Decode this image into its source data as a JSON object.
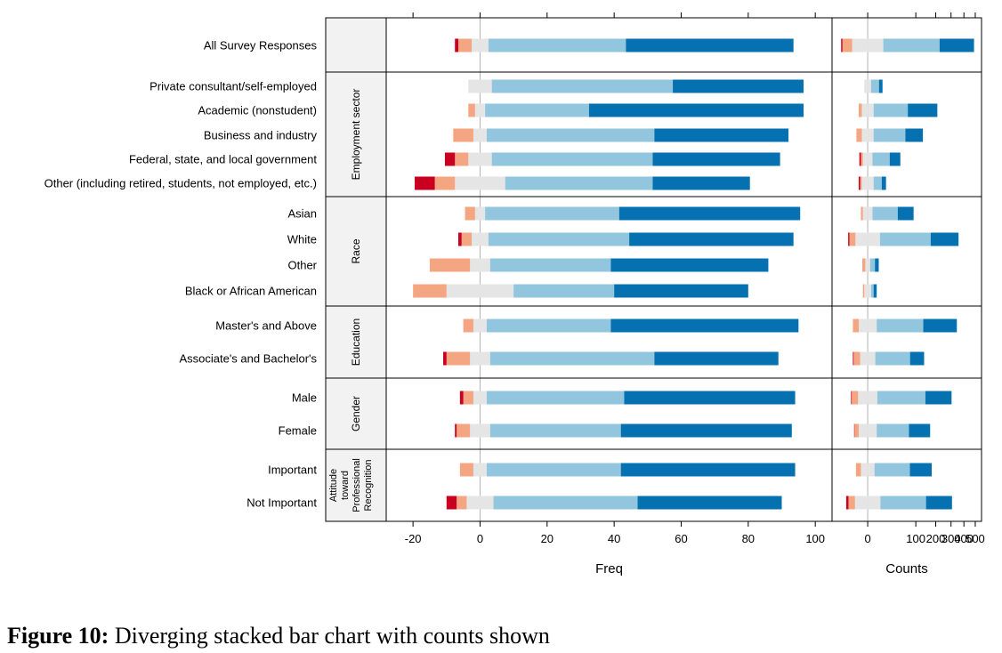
{
  "caption": {
    "label": "Figure 10:",
    "text": " Diverging stacked bar chart with counts shown"
  },
  "colors": {
    "strongly_negative": "#ca0020",
    "negative": "#f4a582",
    "neutral": "#e5e5e5",
    "positive": "#92c5de",
    "strongly_positive": "#0571b0"
  },
  "chart_data": [
    {
      "type": "bar",
      "orientation": "horizontal",
      "stacking": "diverging",
      "xlabel": "Freq",
      "xlim": [
        -28,
        105
      ],
      "xticks": [
        -20,
        0,
        20,
        40,
        60,
        80,
        100
      ],
      "series": [
        {
          "name": "",
          "color": "#ca0020"
        },
        {
          "name": "",
          "color": "#f4a582"
        },
        {
          "name": "",
          "color": "#e5e5e5"
        },
        {
          "name": "",
          "color": "#92c5de"
        },
        {
          "name": "",
          "color": "#0571b0"
        }
      ],
      "groups": [
        {
          "label": "",
          "rows": [
            {
              "label": "All Survey Responses",
              "values": [
                1,
                4,
                5,
                41,
                50
              ]
            }
          ]
        },
        {
          "label": "Employment sector",
          "rows": [
            {
              "label": "Private consultant/self-employed",
              "values": [
                0,
                0,
                7,
                54,
                39
              ]
            },
            {
              "label": "Academic (nonstudent)",
              "values": [
                0,
                2,
                3,
                31,
                64
              ]
            },
            {
              "label": "Business and industry",
              "values": [
                0,
                6,
                4,
                50,
                40
              ]
            },
            {
              "label": "Federal, state, and local government",
              "values": [
                3,
                4,
                7,
                48,
                38
              ]
            },
            {
              "label": "Other (including retired, students, not employed, etc.)",
              "values": [
                6,
                6,
                15,
                44,
                29
              ]
            }
          ]
        },
        {
          "label": "Race",
          "rows": [
            {
              "label": "Asian",
              "values": [
                0,
                3,
                3,
                40,
                54
              ]
            },
            {
              "label": "White",
              "values": [
                1,
                3,
                5,
                42,
                49
              ]
            },
            {
              "label": "Other",
              "values": [
                0,
                12,
                6,
                36,
                47
              ]
            },
            {
              "label": "Black or African American",
              "values": [
                0,
                10,
                20,
                30,
                40
              ]
            }
          ]
        },
        {
          "label": "Education",
          "rows": [
            {
              "label": "Master's and Above",
              "values": [
                0,
                3,
                4,
                37,
                56
              ]
            },
            {
              "label": "Associate's and Bachelor's",
              "values": [
                1,
                7,
                6,
                49,
                37
              ]
            }
          ]
        },
        {
          "label": "Gender",
          "rows": [
            {
              "label": "Male",
              "values": [
                1,
                3,
                4,
                41,
                51
              ]
            },
            {
              "label": "Female",
              "values": [
                0.5,
                4,
                6,
                39,
                51
              ]
            }
          ]
        },
        {
          "label": "Attitude toward Professional Recognition",
          "rows": [
            {
              "label": "Important",
              "values": [
                0,
                4,
                4,
                40,
                52
              ]
            },
            {
              "label": "Not Important",
              "values": [
                3,
                3,
                8,
                43,
                43
              ]
            }
          ]
        }
      ]
    },
    {
      "type": "bar",
      "orientation": "horizontal",
      "stacking": "diverging",
      "xlabel": "Counts",
      "scale": "sqrt",
      "xlim": [
        -55,
        560
      ],
      "xticks": [
        0,
        100,
        200,
        300,
        400,
        500
      ],
      "rows": [
        {
          "label": "All Survey Responses",
          "values": [
            3,
            17,
            21,
            213,
            265
          ]
        },
        {
          "label": "Private consultant/self-employed",
          "values": [
            0,
            0,
            1,
            5,
            4
          ]
        },
        {
          "label": "Academic (nonstudent)",
          "values": [
            0,
            2,
            3,
            68,
            140
          ]
        },
        {
          "label": "Business and industry",
          "values": [
            0,
            4,
            3,
            60,
            70
          ]
        },
        {
          "label": "Federal, state, and local government",
          "values": [
            1,
            1,
            2,
            20,
            25
          ]
        },
        {
          "label": "Other (including retired, students, not employed, etc.)",
          "values": [
            1,
            1,
            3,
            7,
            6
          ]
        },
        {
          "label": "Asian",
          "values": [
            0,
            1,
            2,
            38,
            52
          ]
        },
        {
          "label": "White",
          "values": [
            2,
            8,
            13,
            165,
            185
          ]
        },
        {
          "label": "Other",
          "values": [
            0,
            1,
            0.5,
            2,
            3
          ]
        },
        {
          "label": "Black or African American",
          "values": [
            0,
            0.5,
            1,
            1,
            2
          ]
        },
        {
          "label": "Master's and Above",
          "values": [
            0,
            6,
            7,
            130,
            210
          ]
        },
        {
          "label": "Associate's and Bachelor's",
          "values": [
            1,
            6,
            5,
            75,
            60
          ]
        },
        {
          "label": "Male",
          "values": [
            1,
            7,
            8,
            140,
            160
          ]
        },
        {
          "label": "Female",
          "values": [
            0.5,
            4,
            7,
            70,
            95
          ]
        },
        {
          "label": "Important",
          "values": [
            0,
            4,
            4,
            75,
            100
          ]
        },
        {
          "label": "Not Important",
          "values": [
            4,
            9,
            14,
            140,
            160
          ]
        }
      ]
    }
  ]
}
